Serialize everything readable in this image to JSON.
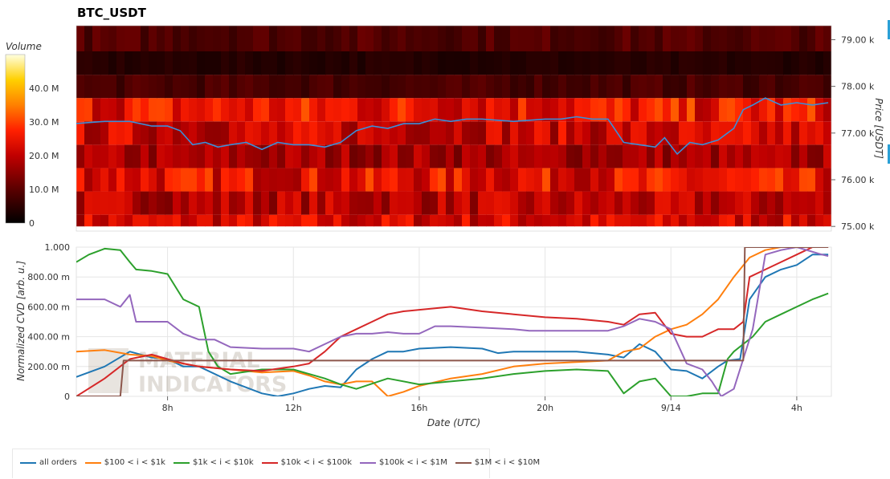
{
  "title": "BTC_USDT",
  "watermark": {
    "line1": "MATERIAL",
    "line2": "INDICATORS"
  },
  "chart_data": [
    {
      "type": "heatmap",
      "title": "BTC_USDT",
      "ylabel": "Price [USDT]",
      "ylim": [
        74.9,
        79.3
      ],
      "y_unit": "k",
      "yticks": [
        "75.00 k",
        "76.00 k",
        "77.00 k",
        "78.00 k",
        "79.00 k"
      ],
      "ytick_values": [
        75,
        76,
        77,
        78,
        79
      ],
      "colorbar": {
        "label": "Volume",
        "ticks": [
          "0",
          "10.0 M",
          "20.0 M",
          "30.0 M",
          "40.0 M"
        ],
        "tick_values": [
          0,
          10,
          20,
          30,
          40
        ],
        "max": 50
      },
      "bands": [
        {
          "low": 75.0,
          "high": 75.25,
          "volume": 22
        },
        {
          "low": 75.25,
          "high": 75.75,
          "volume": 19
        },
        {
          "low": 75.75,
          "high": 76.25,
          "volume": 24
        },
        {
          "low": 76.25,
          "high": 76.75,
          "volume": 17
        },
        {
          "low": 76.75,
          "high": 77.25,
          "volume": 21
        },
        {
          "low": 77.25,
          "high": 77.75,
          "volume": 25
        },
        {
          "low": 77.75,
          "high": 78.25,
          "volume": 8
        },
        {
          "low": 78.25,
          "high": 78.75,
          "volume": 4
        },
        {
          "low": 78.75,
          "high": 79.3,
          "volume": 9
        }
      ],
      "price_line": {
        "x": [
          5,
          6,
          6.8,
          7.5,
          8,
          8.4,
          8.8,
          9.2,
          9.6,
          10,
          10.5,
          11,
          11.5,
          12,
          12.5,
          13,
          13.5,
          14,
          14.5,
          15,
          15.5,
          16,
          16.5,
          17,
          17.5,
          18,
          19,
          20,
          20.5,
          21,
          21.5,
          22,
          22.5,
          23,
          23.5,
          23.8,
          24.2,
          24.6,
          25,
          25.5,
          26,
          26.3,
          26.6,
          27,
          27.5,
          28,
          28.5,
          29
        ],
        "y": [
          77.2,
          77.25,
          77.25,
          77.15,
          77.15,
          77.05,
          76.75,
          76.8,
          76.7,
          76.75,
          76.8,
          76.65,
          76.8,
          76.75,
          76.75,
          76.7,
          76.8,
          77.05,
          77.15,
          77.1,
          77.2,
          77.2,
          77.3,
          77.25,
          77.3,
          77.3,
          77.25,
          77.3,
          77.3,
          77.35,
          77.3,
          77.3,
          76.8,
          76.75,
          76.7,
          76.9,
          76.55,
          76.8,
          76.75,
          76.85,
          77.1,
          77.5,
          77.6,
          77.75,
          77.6,
          77.65,
          77.6,
          77.65
        ]
      }
    },
    {
      "type": "line",
      "xlabel": "Date (UTC)",
      "ylabel": "Normalized CVD [arb. u.]",
      "xlim": [
        5.1,
        29.1
      ],
      "ylim": [
        0,
        1
      ],
      "xticks": [
        "8h",
        "12h",
        "16h",
        "20h",
        "9/14",
        "4h"
      ],
      "xtick_values": [
        8,
        12,
        16,
        20,
        24,
        28
      ],
      "yticks": [
        "0",
        "200.00 m",
        "400.00 m",
        "600.00 m",
        "800.00 m",
        "1.000"
      ],
      "ytick_values": [
        0,
        0.2,
        0.4,
        0.6,
        0.8,
        1.0
      ],
      "grid": true,
      "legend_position": "bottom-left",
      "series": [
        {
          "name": "all orders",
          "color": "#1f77b4",
          "x": [
            5.1,
            6,
            6.8,
            7.5,
            8,
            8.5,
            9,
            10,
            11,
            11.5,
            12,
            12.5,
            13,
            13.5,
            14,
            14.5,
            15,
            15.5,
            16,
            17,
            18,
            18.5,
            19,
            20,
            21,
            22,
            22.5,
            23,
            23.5,
            24,
            24.5,
            25,
            25.5,
            25.8,
            26.2,
            26.5,
            27,
            27.5,
            28,
            28.5,
            29
          ],
          "y": [
            0.13,
            0.2,
            0.3,
            0.26,
            0.25,
            0.2,
            0.2,
            0.1,
            0.02,
            0.0,
            0.02,
            0.05,
            0.07,
            0.06,
            0.18,
            0.25,
            0.3,
            0.3,
            0.32,
            0.33,
            0.32,
            0.29,
            0.3,
            0.3,
            0.3,
            0.28,
            0.26,
            0.35,
            0.3,
            0.18,
            0.17,
            0.12,
            0.2,
            0.24,
            0.25,
            0.65,
            0.8,
            0.85,
            0.88,
            0.95,
            0.95
          ]
        },
        {
          "name": "$100 < i < $1k",
          "color": "#ff7f0e",
          "x": [
            5.1,
            6,
            6.8,
            7.5,
            8,
            8.5,
            9,
            10,
            11,
            12,
            12.5,
            13,
            13.5,
            14,
            14.5,
            15,
            15.5,
            16,
            17,
            18,
            19,
            20,
            21,
            22,
            22.5,
            23,
            23.5,
            24,
            24.5,
            25,
            25.5,
            26,
            26.5,
            27,
            27.5,
            28,
            29
          ],
          "y": [
            0.3,
            0.31,
            0.28,
            0.27,
            0.24,
            0.22,
            0.2,
            0.18,
            0.16,
            0.17,
            0.14,
            0.1,
            0.08,
            0.1,
            0.1,
            0.0,
            0.03,
            0.07,
            0.12,
            0.15,
            0.2,
            0.22,
            0.23,
            0.24,
            0.3,
            0.32,
            0.4,
            0.45,
            0.48,
            0.55,
            0.65,
            0.8,
            0.93,
            0.98,
            1.0,
            1.0,
            1.0
          ]
        },
        {
          "name": "$1k < i < $10k",
          "color": "#2ca02c",
          "x": [
            5.1,
            5.5,
            6,
            6.5,
            6.8,
            7,
            7.5,
            8,
            8.5,
            9,
            9.3,
            9.6,
            10,
            11,
            12,
            12.5,
            13,
            13.5,
            14,
            15,
            16,
            17,
            18,
            19,
            20,
            21,
            22,
            22.5,
            23,
            23.5,
            24,
            24.5,
            25,
            25.5,
            25.8,
            26,
            26.3,
            26.6,
            27,
            27.5,
            28,
            28.5,
            29
          ],
          "y": [
            0.9,
            0.95,
            0.99,
            0.98,
            0.9,
            0.85,
            0.84,
            0.82,
            0.65,
            0.6,
            0.3,
            0.2,
            0.15,
            0.18,
            0.18,
            0.15,
            0.12,
            0.08,
            0.05,
            0.12,
            0.08,
            0.1,
            0.12,
            0.15,
            0.17,
            0.18,
            0.17,
            0.02,
            0.1,
            0.12,
            0.0,
            0.0,
            0.02,
            0.02,
            0.25,
            0.3,
            0.35,
            0.4,
            0.5,
            0.55,
            0.6,
            0.65,
            0.69
          ]
        },
        {
          "name": "$10k < i < $100k",
          "color": "#d62728",
          "x": [
            5.1,
            6,
            6.8,
            7.5,
            8,
            8.5,
            9,
            10,
            11,
            12,
            12.5,
            13,
            13.5,
            14,
            14.5,
            15,
            15.5,
            16,
            17,
            18,
            19,
            20,
            21,
            22,
            22.5,
            23,
            23.5,
            24,
            24.5,
            25,
            25.5,
            26,
            26.3,
            26.5,
            27,
            27.5,
            28,
            28.5,
            29
          ],
          "y": [
            0.0,
            0.12,
            0.25,
            0.28,
            0.25,
            0.22,
            0.2,
            0.18,
            0.17,
            0.2,
            0.22,
            0.3,
            0.4,
            0.45,
            0.5,
            0.55,
            0.57,
            0.58,
            0.6,
            0.57,
            0.55,
            0.53,
            0.52,
            0.5,
            0.48,
            0.55,
            0.56,
            0.42,
            0.4,
            0.4,
            0.45,
            0.45,
            0.5,
            0.8,
            0.85,
            0.9,
            0.95,
            1.0,
            1.0
          ]
        },
        {
          "name": "$100k < i < $1M",
          "color": "#9467bd",
          "x": [
            5.1,
            6,
            6.5,
            6.8,
            7,
            7.5,
            8,
            8.5,
            9,
            9.5,
            10,
            11,
            12,
            12.5,
            13,
            13.5,
            14,
            14.5,
            15,
            15.5,
            16,
            16.5,
            17,
            18,
            19,
            19.5,
            20,
            21,
            22,
            22.5,
            23,
            23.5,
            24,
            24.5,
            25,
            25.3,
            25.6,
            26,
            26.3,
            26.6,
            27,
            27.5,
            28,
            28.8,
            29
          ],
          "y": [
            0.65,
            0.65,
            0.6,
            0.68,
            0.5,
            0.5,
            0.5,
            0.42,
            0.38,
            0.38,
            0.33,
            0.32,
            0.32,
            0.3,
            0.35,
            0.4,
            0.42,
            0.42,
            0.43,
            0.42,
            0.42,
            0.47,
            0.47,
            0.46,
            0.45,
            0.44,
            0.44,
            0.44,
            0.44,
            0.47,
            0.52,
            0.5,
            0.45,
            0.22,
            0.18,
            0.1,
            0.0,
            0.05,
            0.25,
            0.45,
            0.95,
            0.98,
            1.0,
            0.95,
            0.94
          ]
        },
        {
          "name": "$1M < i < $10M",
          "color": "#8c564b",
          "x": [
            5.1,
            6.5,
            6.6,
            25.6,
            26.3,
            26.35,
            29
          ],
          "y": [
            0.0,
            0.0,
            0.24,
            0.24,
            0.24,
            1.0,
            1.0
          ]
        }
      ]
    }
  ]
}
